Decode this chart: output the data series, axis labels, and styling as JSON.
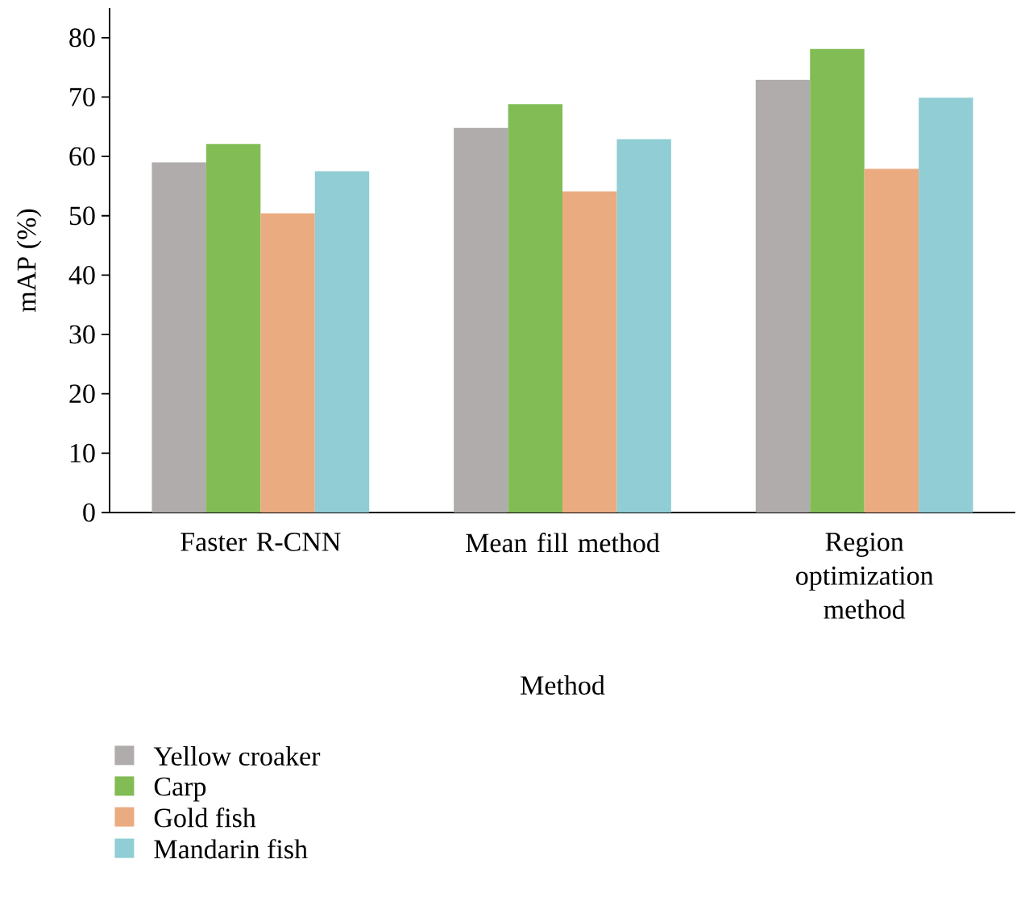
{
  "chart_data": {
    "type": "bar",
    "xlabel": "Method",
    "ylabel": "mAP (%)",
    "categories": [
      "Faster R-CNN",
      "Mean fill method",
      "Region optimization method"
    ],
    "series": [
      {
        "name": "Yellow croaker",
        "color": "#b0acab",
        "values": [
          59.0,
          64.8,
          72.9
        ]
      },
      {
        "name": "Carp",
        "color": "#82bc55",
        "values": [
          62.1,
          68.8,
          78.1
        ]
      },
      {
        "name": "Gold fish",
        "color": "#ebab80",
        "values": [
          50.4,
          54.1,
          57.9
        ]
      },
      {
        "name": "Mandarin fish",
        "color": "#90cdd4",
        "values": [
          57.5,
          62.9,
          69.9
        ]
      }
    ],
    "ylim": [
      0,
      85
    ],
    "yticks": [
      0,
      10,
      20,
      30,
      40,
      50,
      60,
      70,
      80
    ],
    "grid": false,
    "legend": "bottom left"
  }
}
